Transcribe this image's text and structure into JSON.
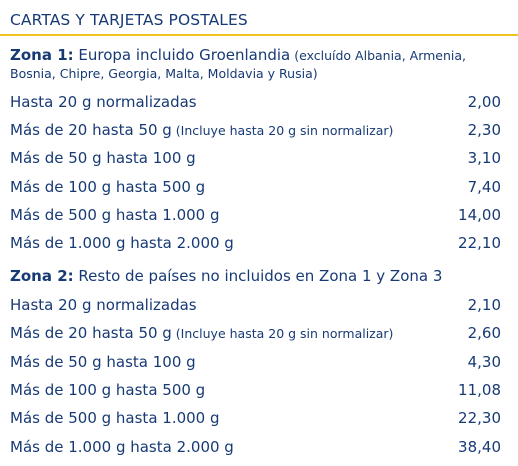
{
  "header": {
    "title": "CARTAS Y TARJETAS POSTALES"
  },
  "zones": [
    {
      "lead": "Zona 1:",
      "title": " Europa incluido Groenlandia",
      "note_line1": " (excluído Albania, Armenia,",
      "note_line2": "Bosnia, Chipre, Georgia, Malta, Moldavia y Rusia)",
      "rows": [
        {
          "weight": "Hasta 20 g normalizadas",
          "note": "",
          "price": "2,00"
        },
        {
          "weight": "Más de 20 hasta 50 g",
          "note": " (Incluye hasta 20 g sin normalizar)",
          "price": "2,30"
        },
        {
          "weight": "Más de 50 g hasta 100 g",
          "note": "",
          "price": "3,10"
        },
        {
          "weight": "Más de 100 g hasta 500 g",
          "note": "",
          "price": "7,40"
        },
        {
          "weight": "Más de 500 g hasta 1.000 g",
          "note": "",
          "price": "14,00"
        },
        {
          "weight": "Más de 1.000 g hasta 2.000 g",
          "note": "",
          "price": "22,10"
        }
      ]
    },
    {
      "lead": "Zona 2:",
      "title": " Resto de países no incluidos en Zona 1 y Zona 3",
      "rows": [
        {
          "weight": "Hasta 20 g normalizadas",
          "note": "",
          "price": "2,10"
        },
        {
          "weight": "Más de 20 hasta 50 g",
          "note": " (Incluye hasta 20 g sin normalizar)",
          "price": "2,60"
        },
        {
          "weight": "Más de 50 g hasta 100 g",
          "note": "",
          "price": "4,30"
        },
        {
          "weight": "Más de 100 g hasta 500 g",
          "note": "",
          "price": "11,08"
        },
        {
          "weight": "Más de 500 g hasta 1.000 g",
          "note": "",
          "price": "22,30"
        },
        {
          "weight": "Más de 1.000 g hasta 2.000 g",
          "note": "",
          "price": "38,40"
        }
      ]
    }
  ],
  "colors": {
    "text": "#173a75",
    "accent_rule": "#f3c31d",
    "background": "#ffffff"
  }
}
